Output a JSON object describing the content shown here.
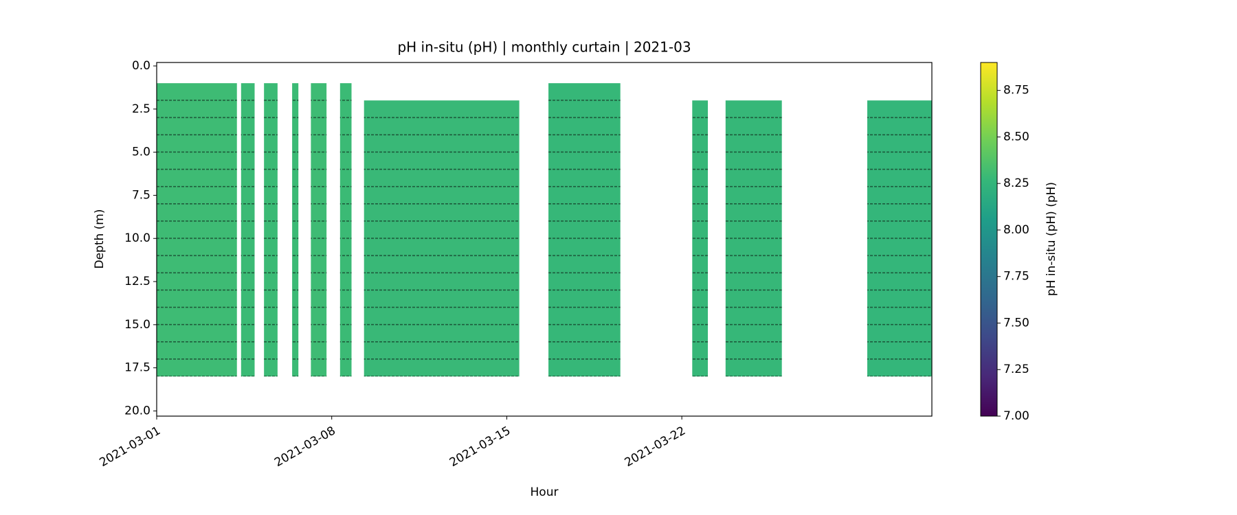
{
  "chart_data": {
    "type": "curtain",
    "title": "pH in-situ (pH) | monthly curtain | 2021-03",
    "x_label": "Hour",
    "y_label": "Depth (m)",
    "colorbar_label": "pH in-situ (pH) (pH)",
    "colormap": "viridis",
    "xlim": [
      "2021-03-01",
      "2021-04-01"
    ],
    "xticks": [
      "2021-03-01",
      "2021-03-08",
      "2021-03-15",
      "2021-03-22"
    ],
    "ylim": [
      20.3,
      -0.2
    ],
    "yticks": [
      {
        "value": 0,
        "label": "0.0"
      },
      2.5,
      {
        "value": 5,
        "label": "5.0"
      },
      7.5,
      {
        "value": 10,
        "label": "10.0"
      },
      12.5,
      {
        "value": 15,
        "label": "15.0"
      },
      17.5,
      {
        "value": 20,
        "label": "20.0"
      }
    ],
    "clim": [
      7.0,
      8.9
    ],
    "cticks": [
      {
        "value": 7,
        "label": "7.00"
      },
      7.25,
      {
        "value": 7.5,
        "label": "7.50"
      },
      7.75,
      {
        "value": 8,
        "label": "8.00"
      },
      8.25,
      {
        "value": 8.5,
        "label": "8.50"
      },
      8.75
    ],
    "blocks": [
      {
        "start": "2021-03-01T00:00",
        "end": "2021-03-04T05:00",
        "top": 1,
        "bottom": 18,
        "value": 8.3
      },
      {
        "start": "2021-03-04T09:00",
        "end": "2021-03-04T22:00",
        "top": 1,
        "bottom": 18,
        "value": 8.29
      },
      {
        "start": "2021-03-05T07:00",
        "end": "2021-03-05T20:00",
        "top": 1,
        "bottom": 18,
        "value": 8.29
      },
      {
        "start": "2021-03-06T10:00",
        "end": "2021-03-06T16:00",
        "top": 1,
        "bottom": 18,
        "value": 8.29
      },
      {
        "start": "2021-03-07T04:00",
        "end": "2021-03-07T19:00",
        "top": 1,
        "bottom": 18,
        "value": 8.3
      },
      {
        "start": "2021-03-08T08:00",
        "end": "2021-03-08T19:00",
        "top": 1,
        "bottom": 18,
        "value": 8.29
      },
      {
        "start": "2021-03-09T07:00",
        "end": "2021-03-15T12:00",
        "top": 2,
        "bottom": 18,
        "value": 8.28
      },
      {
        "start": "2021-03-16T16:00",
        "end": "2021-03-19T13:00",
        "top": 1,
        "bottom": 18,
        "value": 8.27
      },
      {
        "start": "2021-03-22T10:00",
        "end": "2021-03-23T01:00",
        "top": 2,
        "bottom": 18,
        "value": 8.27
      },
      {
        "start": "2021-03-23T18:00",
        "end": "2021-03-26T00:00",
        "top": 2,
        "bottom": 18,
        "value": 8.27
      },
      {
        "start": "2021-03-29T10:00",
        "end": "2021-04-01T00:00",
        "top": 2,
        "bottom": 18,
        "value": 8.26
      }
    ]
  }
}
